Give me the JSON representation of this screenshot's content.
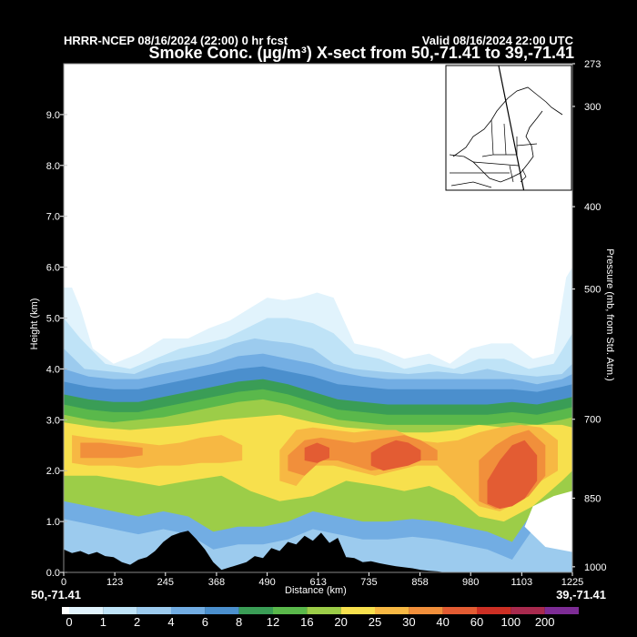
{
  "header": {
    "model_run": "HRRR-NCEP 08/16/2024 (22:00) 0 hr fcst",
    "valid": "Valid 08/16/2024 22:00 UTC",
    "title": "Smoke Conc. (µg/m³) X-sect from 50,-71.41 to 39,-71.41"
  },
  "endpoints": {
    "start": "50,-71.41",
    "end": "39,-71.41"
  },
  "chart_data": {
    "type": "heatmap",
    "xlabel": "Distance (km)",
    "ylabel": "Height (km)",
    "y2label": "Pressure (mb, from Std. Atm.)",
    "xlim": [
      0,
      1225
    ],
    "ylim": [
      0,
      10
    ],
    "x_ticks": [
      0,
      123,
      245,
      368,
      490,
      613,
      735,
      858,
      980,
      1103,
      1225
    ],
    "y_ticks": [
      "0.0",
      "1.0",
      "2.0",
      "3.0",
      "4.0",
      "5.0",
      "6.0",
      "7.0",
      "8.0",
      "9.0"
    ],
    "pressure_ticks": [
      {
        "label": "273",
        "height_km": 10.0
      },
      {
        "label": "300",
        "height_km": 9.16
      },
      {
        "label": "400",
        "height_km": 7.19
      },
      {
        "label": "500",
        "height_km": 5.57
      },
      {
        "label": "700",
        "height_km": 3.01
      },
      {
        "label": "850",
        "height_km": 1.46
      },
      {
        "label": "1000",
        "height_km": 0.11
      }
    ],
    "colorbar": {
      "levels": [
        "0",
        "1",
        "2",
        "4",
        "6",
        "8",
        "12",
        "16",
        "20",
        "25",
        "30",
        "40",
        "60",
        "100",
        "200"
      ],
      "colors": [
        "#ffffff",
        "#e1f3fc",
        "#bfe3f7",
        "#9ccbee",
        "#72ade3",
        "#4b8fcd",
        "#3a9d56",
        "#5ab84b",
        "#9ccd48",
        "#f7e04d",
        "#f7b843",
        "#f18f3b",
        "#e35c33",
        "#cc2f24",
        "#a82a4e",
        "#7d2c95"
      ]
    },
    "contours": [
      {
        "level": "1",
        "color": "#e1f3fc",
        "x": [
          0,
          20,
          40,
          70,
          120,
          180,
          240,
          300,
          350,
          400,
          450,
          490,
          530,
          570,
          610,
          650,
          700,
          760,
          820,
          880,
          930,
          980,
          1030,
          1080,
          1130,
          1180,
          1210,
          1225
        ],
        "y": [
          5.6,
          5.6,
          5.2,
          4.4,
          4.1,
          4.3,
          4.6,
          4.6,
          4.8,
          4.95,
          5.2,
          5.4,
          5.35,
          5.4,
          5.5,
          5.4,
          4.5,
          4.4,
          4.2,
          4.3,
          4.1,
          4.4,
          4.5,
          4.5,
          4.2,
          4.3,
          5.8,
          6.0
        ]
      },
      {
        "level": "2",
        "color": "#bfe3f7",
        "x": [
          0,
          40,
          100,
          160,
          220,
          280,
          340,
          390,
          440,
          490,
          540,
          600,
          650,
          700,
          760,
          820,
          880,
          940,
          1000,
          1060,
          1120,
          1180,
          1225
        ],
        "y": [
          5.0,
          4.6,
          4.1,
          4.0,
          4.2,
          4.4,
          4.5,
          4.6,
          4.8,
          5.0,
          5.0,
          4.9,
          4.7,
          4.3,
          4.2,
          4.0,
          4.1,
          4.0,
          4.2,
          4.2,
          4.0,
          4.1,
          4.7
        ]
      },
      {
        "level": "4",
        "color": "#9ccbee",
        "x": [
          0,
          50,
          110,
          170,
          230,
          290,
          350,
          410,
          460,
          500,
          550,
          600,
          650,
          700,
          760,
          830,
          900,
          960,
          1020,
          1080,
          1140,
          1200,
          1225
        ],
        "y": [
          4.4,
          4.0,
          3.95,
          3.9,
          4.1,
          4.2,
          4.3,
          4.5,
          4.6,
          4.55,
          4.5,
          4.4,
          4.1,
          4.0,
          3.95,
          3.9,
          3.95,
          3.9,
          4.0,
          3.9,
          3.85,
          3.9,
          4.1
        ]
      },
      {
        "level": "6",
        "color": "#72ade3",
        "x": [
          0,
          60,
          120,
          180,
          240,
          300,
          360,
          420,
          480,
          540,
          600,
          660,
          720,
          780,
          840,
          900,
          960,
          1020,
          1080,
          1140,
          1200,
          1225
        ],
        "y": [
          4.0,
          3.85,
          3.8,
          3.8,
          3.9,
          4.0,
          4.1,
          4.25,
          4.3,
          4.2,
          4.1,
          3.95,
          3.85,
          3.8,
          3.8,
          3.8,
          3.8,
          3.8,
          3.8,
          3.7,
          3.8,
          3.9
        ]
      },
      {
        "level": "8",
        "color": "#4b8fcd",
        "x": [
          0,
          60,
          120,
          180,
          240,
          300,
          360,
          420,
          480,
          540,
          600,
          660,
          720,
          780,
          840,
          900,
          960,
          1020,
          1080,
          1140,
          1200,
          1225
        ],
        "y": [
          3.75,
          3.65,
          3.6,
          3.6,
          3.7,
          3.8,
          3.9,
          4.0,
          4.05,
          3.95,
          3.85,
          3.7,
          3.65,
          3.6,
          3.6,
          3.6,
          3.6,
          3.6,
          3.6,
          3.55,
          3.65,
          3.7
        ]
      },
      {
        "level": "12",
        "color": "#3a9d56",
        "x": [
          0,
          60,
          120,
          180,
          240,
          300,
          360,
          420,
          480,
          540,
          600,
          660,
          720,
          780,
          840,
          900,
          960,
          1020,
          1080,
          1140,
          1200,
          1225
        ],
        "y": [
          3.5,
          3.4,
          3.35,
          3.35,
          3.45,
          3.55,
          3.65,
          3.75,
          3.8,
          3.7,
          3.55,
          3.4,
          3.35,
          3.3,
          3.3,
          3.3,
          3.3,
          3.3,
          3.35,
          3.3,
          3.4,
          3.45
        ]
      },
      {
        "level": "16",
        "color": "#5ab84b",
        "x": [
          0,
          60,
          120,
          180,
          240,
          300,
          360,
          420,
          480,
          540,
          600,
          660,
          720,
          780,
          840,
          900,
          960,
          1020,
          1080,
          1140,
          1200,
          1225
        ],
        "y": [
          3.3,
          3.2,
          3.15,
          3.15,
          3.25,
          3.35,
          3.45,
          3.55,
          3.6,
          3.5,
          3.35,
          3.2,
          3.15,
          3.1,
          3.1,
          3.1,
          3.1,
          3.1,
          3.15,
          3.1,
          3.2,
          3.25
        ]
      },
      {
        "level": "20",
        "color": "#9ccd48",
        "x": [
          0,
          60,
          120,
          180,
          240,
          300,
          360,
          420,
          480,
          540,
          600,
          660,
          720,
          780,
          840,
          900,
          960,
          1020,
          1080,
          1140,
          1200,
          1225
        ],
        "y": [
          3.1,
          3.0,
          2.95,
          3.0,
          3.05,
          3.15,
          3.25,
          3.35,
          3.4,
          3.3,
          3.15,
          3.0,
          2.95,
          2.9,
          2.9,
          2.9,
          2.9,
          2.9,
          2.95,
          2.9,
          3.0,
          3.05
        ]
      }
    ],
    "blobs": [
      {
        "level": "25",
        "color": "#f7e04d",
        "x": [
          0,
          80,
          160,
          230,
          300,
          380,
          450,
          520,
          600,
          680,
          760,
          820,
          880,
          940,
          1000,
          1060,
          1130,
          1200,
          1225
        ],
        "top": [
          2.95,
          2.85,
          2.8,
          2.85,
          2.9,
          3.0,
          3.05,
          3.1,
          2.95,
          2.85,
          2.8,
          2.75,
          2.75,
          2.8,
          2.9,
          2.85,
          2.9,
          2.9,
          2.85
        ],
        "bottom": [
          1.9,
          1.9,
          1.8,
          1.7,
          1.8,
          1.9,
          1.6,
          1.4,
          1.5,
          1.8,
          1.7,
          1.6,
          1.7,
          1.5,
          1.1,
          1.0,
          1.3,
          1.8,
          2.0
        ]
      },
      {
        "level": "30",
        "color": "#f7b843",
        "x": [
          20,
          60,
          120,
          180,
          230,
          280,
          330,
          380,
          430
        ],
        "top": [
          2.7,
          2.65,
          2.6,
          2.55,
          2.5,
          2.55,
          2.65,
          2.7,
          2.5
        ],
        "bottom": [
          2.15,
          2.1,
          2.1,
          2.05,
          2.1,
          2.1,
          2.15,
          2.15,
          2.2
        ]
      },
      {
        "level": "30",
        "color": "#f7b843",
        "x": [
          520,
          560,
          600,
          650,
          700,
          750,
          800,
          850,
          900,
          950,
          1000,
          1050,
          1100,
          1150,
          1190
        ],
        "top": [
          2.4,
          2.8,
          2.85,
          2.8,
          2.75,
          2.8,
          2.8,
          2.6,
          2.55,
          2.6,
          2.75,
          2.85,
          2.9,
          2.85,
          2.6
        ],
        "bottom": [
          1.8,
          1.7,
          2.1,
          2.1,
          2.0,
          1.9,
          2.0,
          2.1,
          2.1,
          1.7,
          1.3,
          1.2,
          1.4,
          1.8,
          2.0
        ]
      },
      {
        "level": "40",
        "color": "#f18f3b",
        "x": [
          40,
          90,
          140,
          190
        ],
        "top": [
          2.55,
          2.55,
          2.5,
          2.45
        ],
        "bottom": [
          2.25,
          2.25,
          2.25,
          2.3
        ]
      },
      {
        "level": "40",
        "color": "#f18f3b",
        "x": [
          540,
          580,
          620,
          660,
          700,
          740,
          780,
          820,
          860,
          900
        ],
        "top": [
          2.3,
          2.6,
          2.65,
          2.6,
          2.55,
          2.6,
          2.65,
          2.7,
          2.6,
          2.4
        ],
        "bottom": [
          2.0,
          1.9,
          2.2,
          2.2,
          2.1,
          2.0,
          2.05,
          2.1,
          2.2,
          2.2
        ]
      },
      {
        "level": "40",
        "color": "#f18f3b",
        "x": [
          1000,
          1040,
          1080,
          1120,
          1160
        ],
        "top": [
          2.2,
          2.5,
          2.7,
          2.8,
          2.5
        ],
        "bottom": [
          1.4,
          1.25,
          1.3,
          1.5,
          1.9
        ]
      },
      {
        "level": "60",
        "color": "#e35c33",
        "x": [
          580,
          610,
          640
        ],
        "top": [
          2.45,
          2.55,
          2.45
        ],
        "bottom": [
          2.2,
          2.15,
          2.25
        ]
      },
      {
        "level": "60",
        "color": "#e35c33",
        "x": [
          740,
          770,
          800,
          830,
          860
        ],
        "top": [
          2.35,
          2.5,
          2.6,
          2.55,
          2.4
        ],
        "bottom": [
          2.1,
          2.0,
          2.05,
          2.1,
          2.2
        ]
      },
      {
        "level": "60",
        "color": "#e35c33",
        "x": [
          1020,
          1050,
          1080,
          1110,
          1140
        ],
        "top": [
          1.8,
          2.2,
          2.5,
          2.6,
          2.3
        ],
        "bottom": [
          1.35,
          1.25,
          1.3,
          1.45,
          1.8
        ]
      }
    ],
    "lower_layer": {
      "x": [
        0,
        60,
        120,
        180,
        240,
        300,
        360,
        420,
        480,
        540,
        600,
        660,
        720,
        780,
        840,
        900,
        960,
        1020,
        1080,
        1130,
        1225
      ],
      "y": [
        1.4,
        1.3,
        1.2,
        1.1,
        1.2,
        1.1,
        0.8,
        0.9,
        0.9,
        1.0,
        1.2,
        1.1,
        1.0,
        1.0,
        1.05,
        1.0,
        0.9,
        0.8,
        0.6,
        1.2,
        1.5
      ]
    },
    "terrain": {
      "x": [
        0,
        20,
        40,
        60,
        80,
        100,
        120,
        140,
        160,
        180,
        200,
        220,
        240,
        260,
        280,
        300,
        320,
        340,
        360,
        380,
        400,
        420,
        440,
        460,
        480,
        500,
        520,
        540,
        560,
        580,
        600,
        620,
        640,
        660,
        680,
        700,
        720,
        740,
        760,
        780,
        800,
        820,
        840,
        860,
        880,
        900,
        920,
        1225
      ],
      "y": [
        0.45,
        0.38,
        0.42,
        0.35,
        0.4,
        0.32,
        0.3,
        0.2,
        0.15,
        0.25,
        0.3,
        0.42,
        0.6,
        0.72,
        0.78,
        0.82,
        0.65,
        0.45,
        0.2,
        0.05,
        0.1,
        0.15,
        0.2,
        0.32,
        0.28,
        0.48,
        0.42,
        0.6,
        0.55,
        0.72,
        0.62,
        0.78,
        0.58,
        0.68,
        0.3,
        0.28,
        0.2,
        0.22,
        0.18,
        0.15,
        0.12,
        0.1,
        0.08,
        0.05,
        0.03,
        0.02,
        0.0,
        0.0
      ]
    },
    "inset_map": {
      "description_visible": false,
      "line_from": [
        0.42,
        0.0
      ],
      "line_to": [
        0.62,
        1.0
      ]
    }
  }
}
